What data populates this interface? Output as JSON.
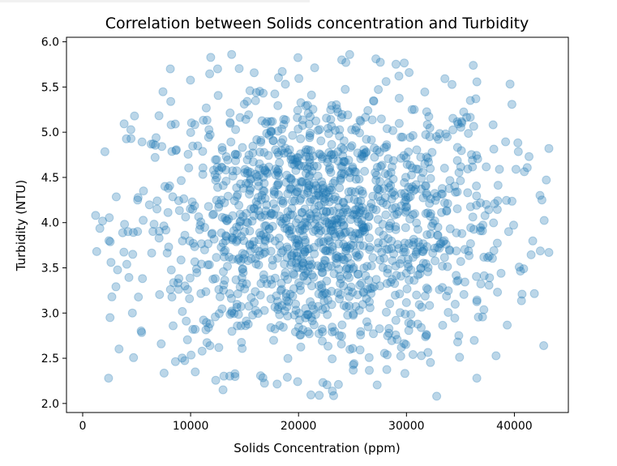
{
  "chart_data": {
    "type": "scatter",
    "title": "Correlation between Solids concentration and Turbidity",
    "xlabel": "Solids Concentration (ppm)",
    "ylabel": "Turbidity (NTU)",
    "xlim": [
      -1500,
      45000
    ],
    "ylim": [
      1.9,
      6.05
    ],
    "xticks": [
      0,
      10000,
      20000,
      30000,
      40000
    ],
    "yticks": [
      2.0,
      2.5,
      3.0,
      3.5,
      4.0,
      4.5,
      5.0,
      5.5,
      6.0
    ],
    "xtick_labels": [
      "0",
      "10000",
      "20000",
      "30000",
      "40000"
    ],
    "ytick_labels": [
      "2.0",
      "2.5",
      "3.0",
      "3.5",
      "4.0",
      "4.5",
      "5.0",
      "5.5",
      "6.0"
    ],
    "grid": false,
    "legend": "none",
    "color": "#1f77b4",
    "alpha": 0.3,
    "point_count_estimate": 1500,
    "distribution": {
      "x_mean": 22000,
      "x_std": 8700,
      "x_min": 1200,
      "x_max": 43200,
      "y_mean": 3.95,
      "y_std": 0.78,
      "y_min": 2.08,
      "y_max": 5.86
    },
    "outlier_points": [
      [
        1200,
        4.08
      ],
      [
        1300,
        3.68
      ],
      [
        2400,
        2.28
      ],
      [
        4800,
        5.18
      ],
      [
        43200,
        4.82
      ],
      [
        43200,
        3.67
      ],
      [
        32800,
        2.08
      ],
      [
        13800,
        5.86
      ],
      [
        24000,
        5.8
      ]
    ]
  }
}
